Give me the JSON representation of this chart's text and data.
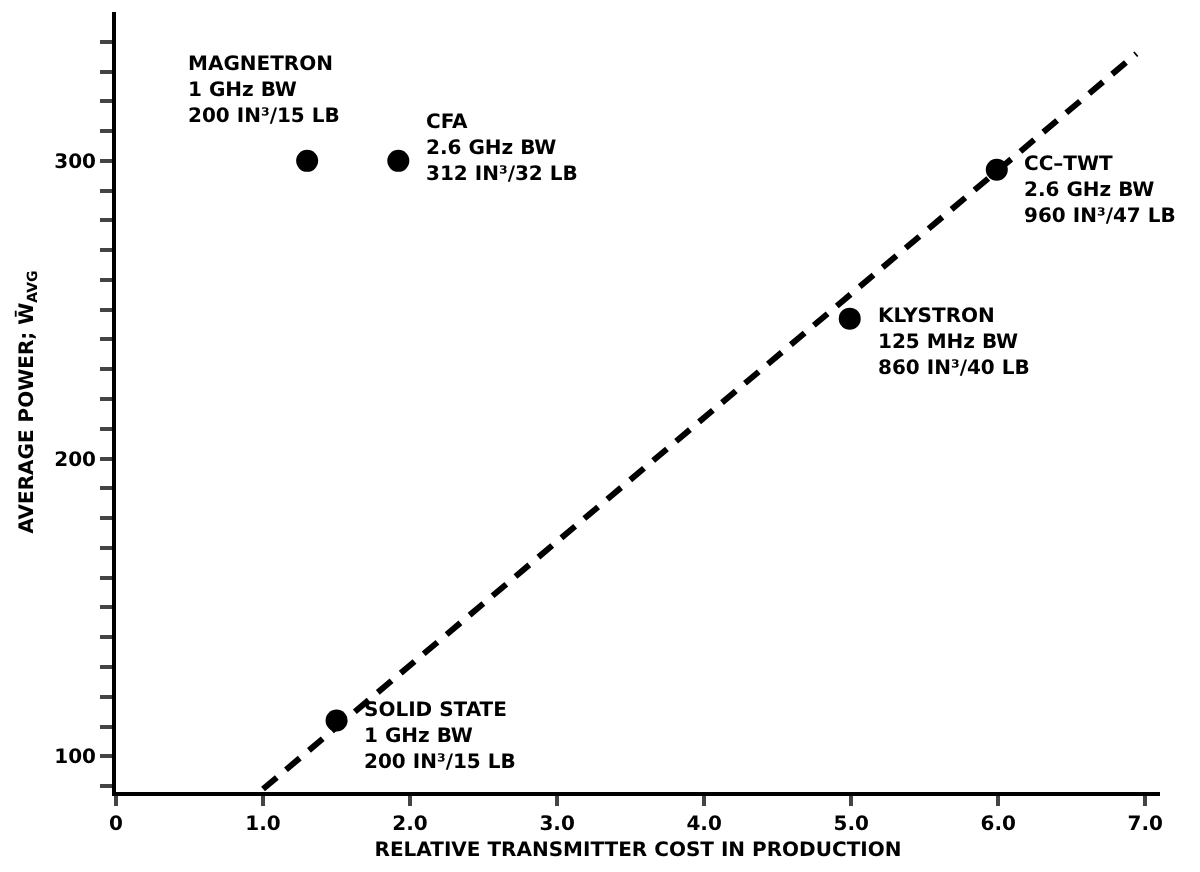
{
  "chart_data": {
    "type": "scatter",
    "xlabel": "RELATIVE TRANSMITTER COST IN PRODUCTION",
    "ylabel": "AVERAGE POWER; W̄$_{AVG}$",
    "xlim": [
      0,
      7.1
    ],
    "xticks": [
      {
        "value": 0,
        "label": "0"
      },
      {
        "value": 1,
        "label": "1.0"
      },
      {
        "value": 2,
        "label": "2.0"
      },
      {
        "value": 3,
        "label": "3.0"
      },
      {
        "value": 4,
        "label": "4.0"
      },
      {
        "value": 5,
        "label": "5.0"
      },
      {
        "value": 6,
        "label": "6.0"
      },
      {
        "value": 7,
        "label": "7.0"
      }
    ],
    "ylim": [
      88,
      350
    ],
    "yticks": [
      {
        "value": 90,
        "label": null
      },
      100,
      {
        "value": 110,
        "label": null
      },
      {
        "value": 120,
        "label": null
      },
      {
        "value": 130,
        "label": null
      },
      {
        "value": 140,
        "label": null
      },
      {
        "value": 150,
        "label": null
      },
      {
        "value": 160,
        "label": null
      },
      {
        "value": 170,
        "label": null
      },
      {
        "value": 180,
        "label": null
      },
      {
        "value": 190,
        "label": null
      },
      200,
      {
        "value": 210,
        "label": null
      },
      {
        "value": 220,
        "label": null
      },
      {
        "value": 230,
        "label": null
      },
      {
        "value": 240,
        "label": null
      },
      {
        "value": 250,
        "label": null
      },
      {
        "value": 260,
        "label": null
      },
      {
        "value": 270,
        "label": null
      },
      {
        "value": 280,
        "label": null
      },
      {
        "value": 290,
        "label": null
      },
      300,
      {
        "value": 310,
        "label": null
      },
      {
        "value": 320,
        "label": null
      },
      {
        "value": 330,
        "label": null
      },
      {
        "value": 340,
        "label": null
      }
    ],
    "grid": false,
    "series": [
      {
        "type": "line",
        "color": "#000000",
        "line_style": "dashed",
        "marker": "none",
        "x": [
          1.0,
          6.94
        ],
        "values": [
          89,
          336
        ]
      },
      {
        "color": "#000000",
        "marker": "circle",
        "x": [
          1.3,
          1.5
        ],
        "values": [
          300,
          112
        ]
      },
      {
        "color": "#000000",
        "marker": "circle",
        "x": [
          1.92,
          4.99,
          5.99
        ],
        "values": [
          300,
          247,
          297
        ]
      }
    ],
    "annotations": [
      {
        "text": "MAGNETRON\n1 GHz BW\n200 IN³/15 LB",
        "x": 1.3,
        "y": 300
      },
      {
        "text": "CFA\n2.6 GHz BW\n312 IN³/32 LB",
        "x": 1.92,
        "y": 300
      },
      {
        "text": "CC–TWT\n2.6 GHz BW\n960 IN³/47 LB",
        "x": 5.99,
        "y": 297
      },
      {
        "text": "KLYSTRON\n125 MHz BW\n860 IN³/40 LB",
        "x": 4.99,
        "y": 247
      },
      {
        "text": "SOLID STATE\n1 GHz BW\n200 IN³/15 LB",
        "x": 1.5,
        "y": 112
      }
    ]
  }
}
